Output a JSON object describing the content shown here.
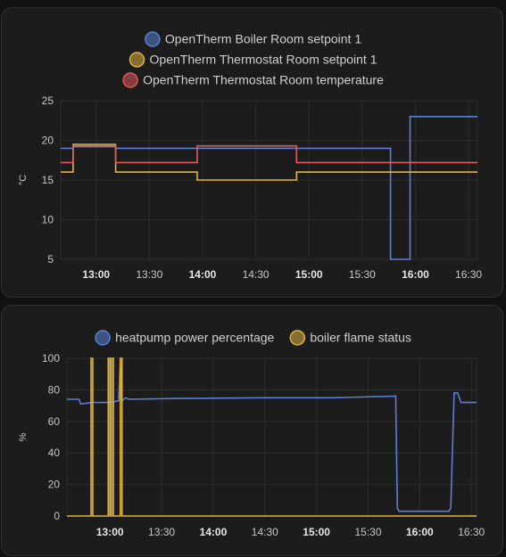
{
  "chart_data": [
    {
      "type": "line",
      "id": "temps",
      "ylabel": "°C",
      "ylim": [
        5,
        25
      ],
      "yticks": [
        5,
        10,
        15,
        20,
        25
      ],
      "xlim": [
        "12:40",
        "16:35"
      ],
      "xticks": [
        {
          "t": "13:00",
          "label": "13:00",
          "bold": true
        },
        {
          "t": "13:30",
          "label": "13:30",
          "bold": false
        },
        {
          "t": "14:00",
          "label": "14:00",
          "bold": true
        },
        {
          "t": "14:30",
          "label": "14:30",
          "bold": false
        },
        {
          "t": "15:00",
          "label": "15:00",
          "bold": true
        },
        {
          "t": "15:30",
          "label": "15:30",
          "bold": false
        },
        {
          "t": "16:00",
          "label": "16:00",
          "bold": true
        },
        {
          "t": "16:30",
          "label": "16:30",
          "bold": false
        }
      ],
      "legend_position": "top-center",
      "grid": true,
      "series": [
        {
          "name": "OpenTherm Boiler Room setpoint 1",
          "color": "#5b7fd6",
          "step": true,
          "points": [
            [
              "12:40",
              19
            ],
            [
              "12:47",
              19.2
            ],
            [
              "13:11",
              19
            ],
            [
              "15:46",
              5
            ],
            [
              "15:57",
              23
            ],
            [
              "16:35",
              23
            ]
          ]
        },
        {
          "name": "OpenTherm Thermostat Room setpoint 1",
          "color": "#e0b33e",
          "step": true,
          "points": [
            [
              "12:40",
              16
            ],
            [
              "12:47",
              19.5
            ],
            [
              "13:11",
              16
            ],
            [
              "13:57",
              15
            ],
            [
              "14:53",
              16
            ],
            [
              "16:35",
              16
            ]
          ]
        },
        {
          "name": "OpenTherm Thermostat Room temperature",
          "color": "#e05a5a",
          "step": true,
          "points": [
            [
              "12:40",
              17.2
            ],
            [
              "12:47",
              19.3
            ],
            [
              "13:11",
              17.2
            ],
            [
              "13:57",
              19.3
            ],
            [
              "14:53",
              17.2
            ],
            [
              "16:35",
              17.2
            ]
          ]
        }
      ]
    },
    {
      "type": "line",
      "id": "power",
      "ylabel": "%",
      "ylim": [
        0,
        100
      ],
      "yticks": [
        0,
        20,
        40,
        60,
        80,
        100
      ],
      "xlim": [
        "12:35",
        "16:33"
      ],
      "xticks": [
        {
          "t": "13:00",
          "label": "13:00",
          "bold": true
        },
        {
          "t": "13:30",
          "label": "13:30",
          "bold": false
        },
        {
          "t": "14:00",
          "label": "14:00",
          "bold": true
        },
        {
          "t": "14:30",
          "label": "14:30",
          "bold": false
        },
        {
          "t": "15:00",
          "label": "15:00",
          "bold": true
        },
        {
          "t": "15:30",
          "label": "15:30",
          "bold": false
        },
        {
          "t": "16:00",
          "label": "16:00",
          "bold": true
        },
        {
          "t": "16:30",
          "label": "16:30",
          "bold": false
        }
      ],
      "legend_position": "top-center",
      "grid": true,
      "series": [
        {
          "name": "heatpump power percentage",
          "color": "#5b7fd6",
          "step": false,
          "points": [
            [
              "12:35",
              74
            ],
            [
              "12:42",
              74
            ],
            [
              "12:43",
              71
            ],
            [
              "12:50",
              72
            ],
            [
              "12:55",
              72
            ],
            [
              "13:00",
              72
            ],
            [
              "13:05",
              73
            ],
            [
              "13:06",
              98
            ],
            [
              "13:07",
              73
            ],
            [
              "13:09",
              75
            ],
            [
              "13:11",
              74
            ],
            [
              "13:40",
              74.5
            ],
            [
              "14:30",
              75
            ],
            [
              "15:10",
              75
            ],
            [
              "15:46",
              76
            ],
            [
              "15:47",
              5
            ],
            [
              "15:48",
              3
            ],
            [
              "16:17",
              3
            ],
            [
              "16:18",
              5
            ],
            [
              "16:20",
              78
            ],
            [
              "16:22",
              78
            ],
            [
              "16:24",
              72
            ],
            [
              "16:33",
              72
            ]
          ]
        },
        {
          "name": "boiler flame status",
          "color": "#e0b33e",
          "step": true,
          "points": [
            [
              "12:35",
              0
            ],
            [
              "12:49",
              100
            ],
            [
              "12:50",
              0
            ],
            [
              "12:59",
              100
            ],
            [
              "13:00",
              0
            ],
            [
              "13:01",
              100
            ],
            [
              "13:02",
              0
            ],
            [
              "13:06",
              100
            ],
            [
              "13:07",
              0
            ],
            [
              "16:33",
              0
            ]
          ]
        }
      ]
    }
  ]
}
